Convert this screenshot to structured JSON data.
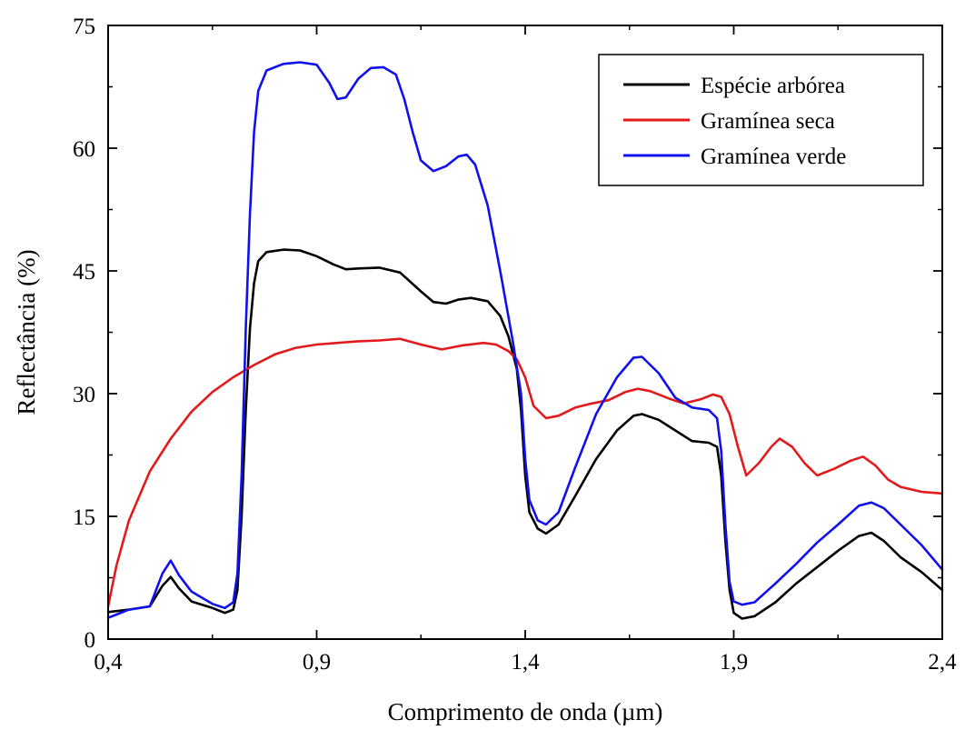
{
  "chart_data": {
    "type": "line",
    "title": "",
    "xlabel": "Comprimento de onda (µm)",
    "ylabel": "Reflectância (%)",
    "xlim": [
      0.4,
      2.4
    ],
    "ylim": [
      0,
      75
    ],
    "x_ticks": [
      0.4,
      0.9,
      1.4,
      1.9,
      2.4
    ],
    "x_tick_labels": [
      "0,4",
      "0,9",
      "1,4",
      "1,9",
      "2,4"
    ],
    "y_ticks": [
      0,
      15,
      30,
      45,
      60,
      75
    ],
    "y_tick_labels": [
      "0",
      "15",
      "30",
      "45",
      "60",
      "75"
    ],
    "grid": false,
    "legend_position": "top-right",
    "series": [
      {
        "name": "Espécie arbórea",
        "color": "#000000",
        "points": [
          [
            0.4,
            3.3
          ],
          [
            0.45,
            3.6
          ],
          [
            0.5,
            4.0
          ],
          [
            0.53,
            6.5
          ],
          [
            0.55,
            7.6
          ],
          [
            0.57,
            6.2
          ],
          [
            0.6,
            4.6
          ],
          [
            0.65,
            3.8
          ],
          [
            0.68,
            3.2
          ],
          [
            0.7,
            3.6
          ],
          [
            0.71,
            6.0
          ],
          [
            0.72,
            15.0
          ],
          [
            0.73,
            28.0
          ],
          [
            0.74,
            38.0
          ],
          [
            0.75,
            43.5
          ],
          [
            0.76,
            46.2
          ],
          [
            0.78,
            47.3
          ],
          [
            0.82,
            47.6
          ],
          [
            0.86,
            47.5
          ],
          [
            0.9,
            46.8
          ],
          [
            0.94,
            45.8
          ],
          [
            0.97,
            45.2
          ],
          [
            1.0,
            45.3
          ],
          [
            1.05,
            45.4
          ],
          [
            1.1,
            44.8
          ],
          [
            1.15,
            42.5
          ],
          [
            1.18,
            41.2
          ],
          [
            1.21,
            41.0
          ],
          [
            1.24,
            41.5
          ],
          [
            1.27,
            41.7
          ],
          [
            1.31,
            41.3
          ],
          [
            1.34,
            39.5
          ],
          [
            1.36,
            37.0
          ],
          [
            1.38,
            33.0
          ],
          [
            1.39,
            28.0
          ],
          [
            1.4,
            20.0
          ],
          [
            1.41,
            15.5
          ],
          [
            1.43,
            13.5
          ],
          [
            1.45,
            12.9
          ],
          [
            1.48,
            14.0
          ],
          [
            1.52,
            17.5
          ],
          [
            1.57,
            22.0
          ],
          [
            1.62,
            25.5
          ],
          [
            1.66,
            27.3
          ],
          [
            1.68,
            27.5
          ],
          [
            1.72,
            26.8
          ],
          [
            1.76,
            25.5
          ],
          [
            1.8,
            24.2
          ],
          [
            1.84,
            24.0
          ],
          [
            1.86,
            23.5
          ],
          [
            1.87,
            20.0
          ],
          [
            1.88,
            12.0
          ],
          [
            1.89,
            6.0
          ],
          [
            1.9,
            3.2
          ],
          [
            1.92,
            2.5
          ],
          [
            1.95,
            2.8
          ],
          [
            2.0,
            4.5
          ],
          [
            2.05,
            6.8
          ],
          [
            2.1,
            8.8
          ],
          [
            2.15,
            10.8
          ],
          [
            2.2,
            12.6
          ],
          [
            2.23,
            13.0
          ],
          [
            2.26,
            12.0
          ],
          [
            2.3,
            10.0
          ],
          [
            2.35,
            8.2
          ],
          [
            2.4,
            6.0
          ]
        ]
      },
      {
        "name": "Gramínea seca",
        "color": "#e31a1c",
        "points": [
          [
            0.4,
            4.0
          ],
          [
            0.42,
            9.0
          ],
          [
            0.45,
            14.5
          ],
          [
            0.5,
            20.5
          ],
          [
            0.55,
            24.5
          ],
          [
            0.6,
            27.8
          ],
          [
            0.65,
            30.2
          ],
          [
            0.7,
            32.0
          ],
          [
            0.75,
            33.5
          ],
          [
            0.8,
            34.8
          ],
          [
            0.85,
            35.6
          ],
          [
            0.9,
            36.0
          ],
          [
            0.95,
            36.2
          ],
          [
            1.0,
            36.4
          ],
          [
            1.05,
            36.5
          ],
          [
            1.1,
            36.7
          ],
          [
            1.15,
            36.0
          ],
          [
            1.2,
            35.4
          ],
          [
            1.25,
            35.9
          ],
          [
            1.3,
            36.2
          ],
          [
            1.33,
            36.0
          ],
          [
            1.36,
            35.2
          ],
          [
            1.38,
            34.2
          ],
          [
            1.4,
            32.0
          ],
          [
            1.42,
            28.5
          ],
          [
            1.45,
            27.0
          ],
          [
            1.48,
            27.3
          ],
          [
            1.52,
            28.3
          ],
          [
            1.56,
            28.8
          ],
          [
            1.6,
            29.2
          ],
          [
            1.64,
            30.2
          ],
          [
            1.67,
            30.6
          ],
          [
            1.7,
            30.3
          ],
          [
            1.75,
            29.3
          ],
          [
            1.78,
            28.8
          ],
          [
            1.82,
            29.3
          ],
          [
            1.85,
            29.9
          ],
          [
            1.87,
            29.6
          ],
          [
            1.89,
            27.5
          ],
          [
            1.91,
            23.5
          ],
          [
            1.93,
            20.0
          ],
          [
            1.96,
            21.5
          ],
          [
            1.99,
            23.5
          ],
          [
            2.01,
            24.5
          ],
          [
            2.04,
            23.5
          ],
          [
            2.07,
            21.5
          ],
          [
            2.1,
            20.0
          ],
          [
            2.14,
            20.8
          ],
          [
            2.18,
            21.8
          ],
          [
            2.21,
            22.3
          ],
          [
            2.24,
            21.2
          ],
          [
            2.27,
            19.5
          ],
          [
            2.3,
            18.6
          ],
          [
            2.35,
            18.0
          ],
          [
            2.4,
            17.8
          ]
        ]
      },
      {
        "name": "Gramínea verde",
        "color": "#1010ee",
        "points": [
          [
            0.4,
            2.6
          ],
          [
            0.42,
            3.0
          ],
          [
            0.45,
            3.6
          ],
          [
            0.5,
            4.0
          ],
          [
            0.53,
            8.0
          ],
          [
            0.55,
            9.6
          ],
          [
            0.57,
            7.8
          ],
          [
            0.6,
            5.8
          ],
          [
            0.65,
            4.3
          ],
          [
            0.68,
            3.8
          ],
          [
            0.7,
            4.5
          ],
          [
            0.71,
            8.0
          ],
          [
            0.72,
            20.0
          ],
          [
            0.73,
            38.0
          ],
          [
            0.74,
            52.0
          ],
          [
            0.75,
            62.0
          ],
          [
            0.76,
            67.0
          ],
          [
            0.78,
            69.5
          ],
          [
            0.82,
            70.3
          ],
          [
            0.86,
            70.5
          ],
          [
            0.9,
            70.2
          ],
          [
            0.93,
            68.0
          ],
          [
            0.95,
            66.0
          ],
          [
            0.97,
            66.2
          ],
          [
            1.0,
            68.5
          ],
          [
            1.03,
            69.8
          ],
          [
            1.06,
            69.9
          ],
          [
            1.09,
            69.0
          ],
          [
            1.11,
            66.0
          ],
          [
            1.13,
            62.0
          ],
          [
            1.15,
            58.5
          ],
          [
            1.18,
            57.2
          ],
          [
            1.21,
            57.8
          ],
          [
            1.24,
            59.0
          ],
          [
            1.26,
            59.2
          ],
          [
            1.28,
            58.0
          ],
          [
            1.31,
            53.0
          ],
          [
            1.34,
            45.0
          ],
          [
            1.37,
            36.5
          ],
          [
            1.39,
            30.0
          ],
          [
            1.4,
            22.0
          ],
          [
            1.41,
            17.0
          ],
          [
            1.43,
            14.5
          ],
          [
            1.45,
            14.0
          ],
          [
            1.48,
            15.5
          ],
          [
            1.52,
            21.0
          ],
          [
            1.57,
            27.5
          ],
          [
            1.62,
            32.0
          ],
          [
            1.66,
            34.4
          ],
          [
            1.68,
            34.5
          ],
          [
            1.72,
            32.5
          ],
          [
            1.76,
            29.5
          ],
          [
            1.8,
            28.3
          ],
          [
            1.84,
            28.0
          ],
          [
            1.86,
            27.0
          ],
          [
            1.87,
            23.0
          ],
          [
            1.88,
            14.0
          ],
          [
            1.89,
            7.0
          ],
          [
            1.9,
            4.6
          ],
          [
            1.92,
            4.2
          ],
          [
            1.95,
            4.5
          ],
          [
            2.0,
            6.8
          ],
          [
            2.05,
            9.2
          ],
          [
            2.1,
            11.8
          ],
          [
            2.15,
            14.0
          ],
          [
            2.2,
            16.3
          ],
          [
            2.23,
            16.7
          ],
          [
            2.26,
            16.0
          ],
          [
            2.3,
            14.0
          ],
          [
            2.35,
            11.5
          ],
          [
            2.4,
            8.5
          ]
        ]
      }
    ]
  }
}
